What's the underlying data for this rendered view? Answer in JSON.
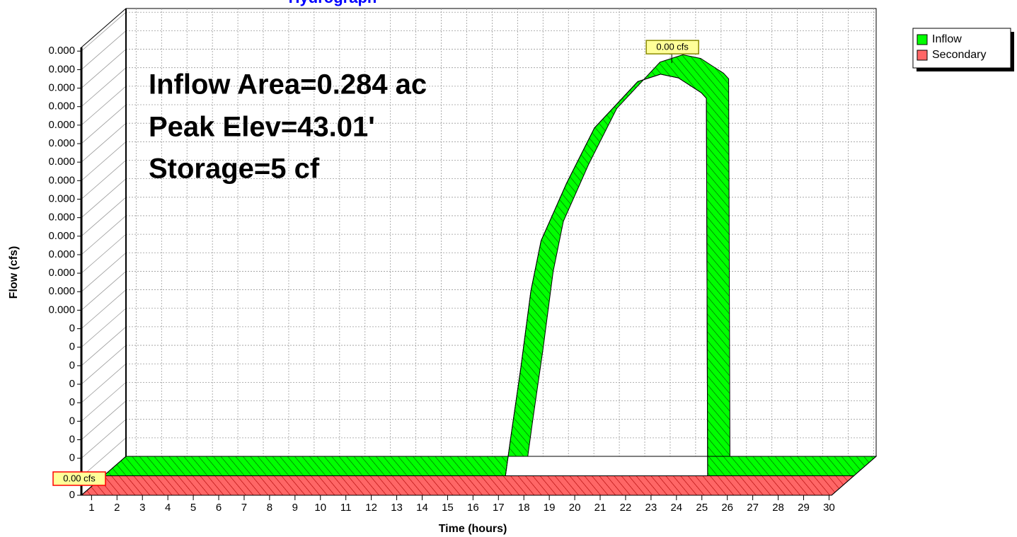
{
  "chart_data": {
    "type": "area3d",
    "title": "Hydrograph",
    "xlabel": "Time  (hours)",
    "ylabel": "Flow  (cfs)",
    "annotations": [
      "Inflow Area=0.284 ac",
      "Peak Elev=43.01'",
      "Storage=5 cf"
    ],
    "x": [
      0.6,
      16.4,
      16.6,
      17.0,
      17.4,
      17.8,
      18.8,
      19.9,
      21.6,
      22.5,
      23.2,
      24.1,
      24.3,
      24.35,
      30.1
    ],
    "series": [
      {
        "name": "Inflow",
        "color": "#00ff00",
        "hatch": "#005500",
        "peak_label": "0.00 cfs",
        "values": [
          0,
          0,
          2e-05,
          5.8e-05,
          0.0001,
          0.000127,
          0.000158,
          0.000188,
          0.000213,
          0.000217,
          0.000215,
          0.000207,
          0.000204,
          0,
          0
        ]
      },
      {
        "name": "Secondary",
        "color": "#ff6666",
        "hatch": "#aa0000",
        "peak_label": "0.00 cfs",
        "values": [
          0,
          0,
          0,
          0,
          0,
          0,
          0,
          0,
          0,
          0,
          0,
          0,
          0,
          0,
          0
        ]
      }
    ],
    "xlim": [
      0.6,
      30.1
    ],
    "xticks": [
      1,
      2,
      3,
      4,
      5,
      6,
      7,
      8,
      9,
      10,
      11,
      12,
      13,
      14,
      15,
      16,
      17,
      18,
      19,
      20,
      21,
      22,
      23,
      24,
      25,
      26,
      27,
      28,
      29,
      30
    ],
    "ylim": [
      0,
      0.000242
    ],
    "yticks": [
      0,
      {
        "value": 1e-05,
        "label": "0"
      },
      {
        "value": 2e-05,
        "label": "0"
      },
      {
        "value": 3e-05,
        "label": "0"
      },
      {
        "value": 4e-05,
        "label": "0"
      },
      {
        "value": 5e-05,
        "label": "0"
      },
      {
        "value": 6e-05,
        "label": "0"
      },
      {
        "value": 7e-05,
        "label": "0"
      },
      {
        "value": 8e-05,
        "label": "0"
      },
      {
        "value": 9e-05,
        "label": "0"
      },
      {
        "value": 0.0001,
        "label": "0.000"
      },
      {
        "value": 0.00011,
        "label": "0.000"
      },
      {
        "value": 0.00012,
        "label": "0.000"
      },
      {
        "value": 0.00013,
        "label": "0.000"
      },
      {
        "value": 0.00014,
        "label": "0.000"
      },
      {
        "value": 0.00015,
        "label": "0.000"
      },
      {
        "value": 0.00016,
        "label": "0.000"
      },
      {
        "value": 0.00017,
        "label": "0.000"
      },
      {
        "value": 0.00018,
        "label": "0.000"
      },
      {
        "value": 0.00019,
        "label": "0.000"
      },
      {
        "value": 0.0002,
        "label": "0.000"
      },
      {
        "value": 0.00021,
        "label": "0.000"
      },
      {
        "value": 0.00022,
        "label": "0.000"
      },
      {
        "value": 0.00023,
        "label": "0.000"
      },
      {
        "value": 0.00024,
        "label": "0.000"
      }
    ],
    "grid": true,
    "legend": "top-right"
  }
}
